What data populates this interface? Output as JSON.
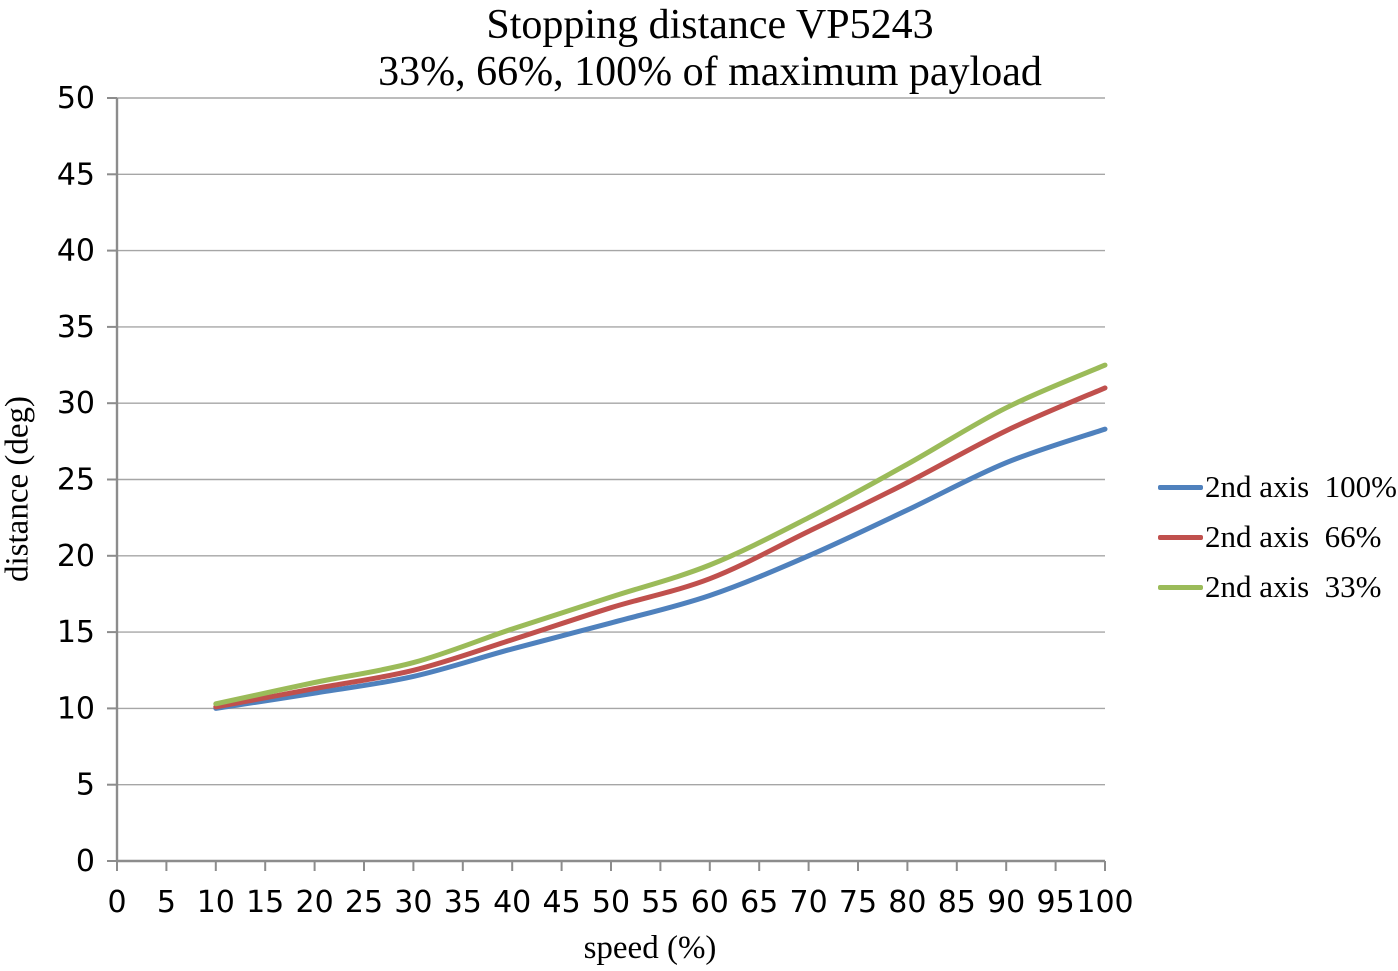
{
  "title": {
    "line1": "Stopping distance VP5243",
    "line2": "33%, 66%, 100% of maximum payload"
  },
  "axes": {
    "x_title": "speed (%)",
    "y_title": "distance (deg)"
  },
  "legend": {
    "items": [
      {
        "label": "2nd axis  100%",
        "color": "#4F81BD"
      },
      {
        "label": "2nd axis  66%",
        "color": "#C0504D"
      },
      {
        "label": "2nd axis  33%",
        "color": "#9BBB59"
      }
    ]
  },
  "chart_data": {
    "type": "line",
    "title": "Stopping distance VP5243",
    "subtitle": "33%, 66%, 100% of maximum payload",
    "xlabel": "speed (%)",
    "ylabel": "distance (deg)",
    "xlim": [
      0,
      100
    ],
    "ylim": [
      0,
      50
    ],
    "x_ticks": [
      0,
      5,
      10,
      15,
      20,
      25,
      30,
      35,
      40,
      45,
      50,
      55,
      60,
      65,
      70,
      75,
      80,
      85,
      90,
      95,
      100
    ],
    "y_ticks": [
      0,
      5,
      10,
      15,
      20,
      25,
      30,
      35,
      40,
      45,
      50
    ],
    "grid": "horizontal-only",
    "legend_position": "right",
    "x": [
      10,
      20,
      30,
      40,
      50,
      60,
      70,
      80,
      90,
      100
    ],
    "series": [
      {
        "name": "2nd axis 100%",
        "color": "#4F81BD",
        "values": [
          10.0,
          11.0,
          12.1,
          13.9,
          15.6,
          17.4,
          20.0,
          23.0,
          26.1,
          28.3
        ]
      },
      {
        "name": "2nd axis 66%",
        "color": "#C0504D",
        "values": [
          10.1,
          11.3,
          12.5,
          14.5,
          16.6,
          18.5,
          21.6,
          24.8,
          28.2,
          31.0
        ]
      },
      {
        "name": "2nd axis 33%",
        "color": "#9BBB59",
        "values": [
          10.3,
          11.7,
          13.0,
          15.2,
          17.3,
          19.4,
          22.5,
          26.0,
          29.7,
          32.5
        ]
      }
    ]
  },
  "style": {
    "grid_color": "#A6A6A6",
    "axis_color": "#8C8C8C",
    "tick_label_color": "#000000",
    "background": "#FFFFFF",
    "series_blue": "#4F81BD",
    "series_red": "#C0504D",
    "series_green": "#9BBB59"
  }
}
